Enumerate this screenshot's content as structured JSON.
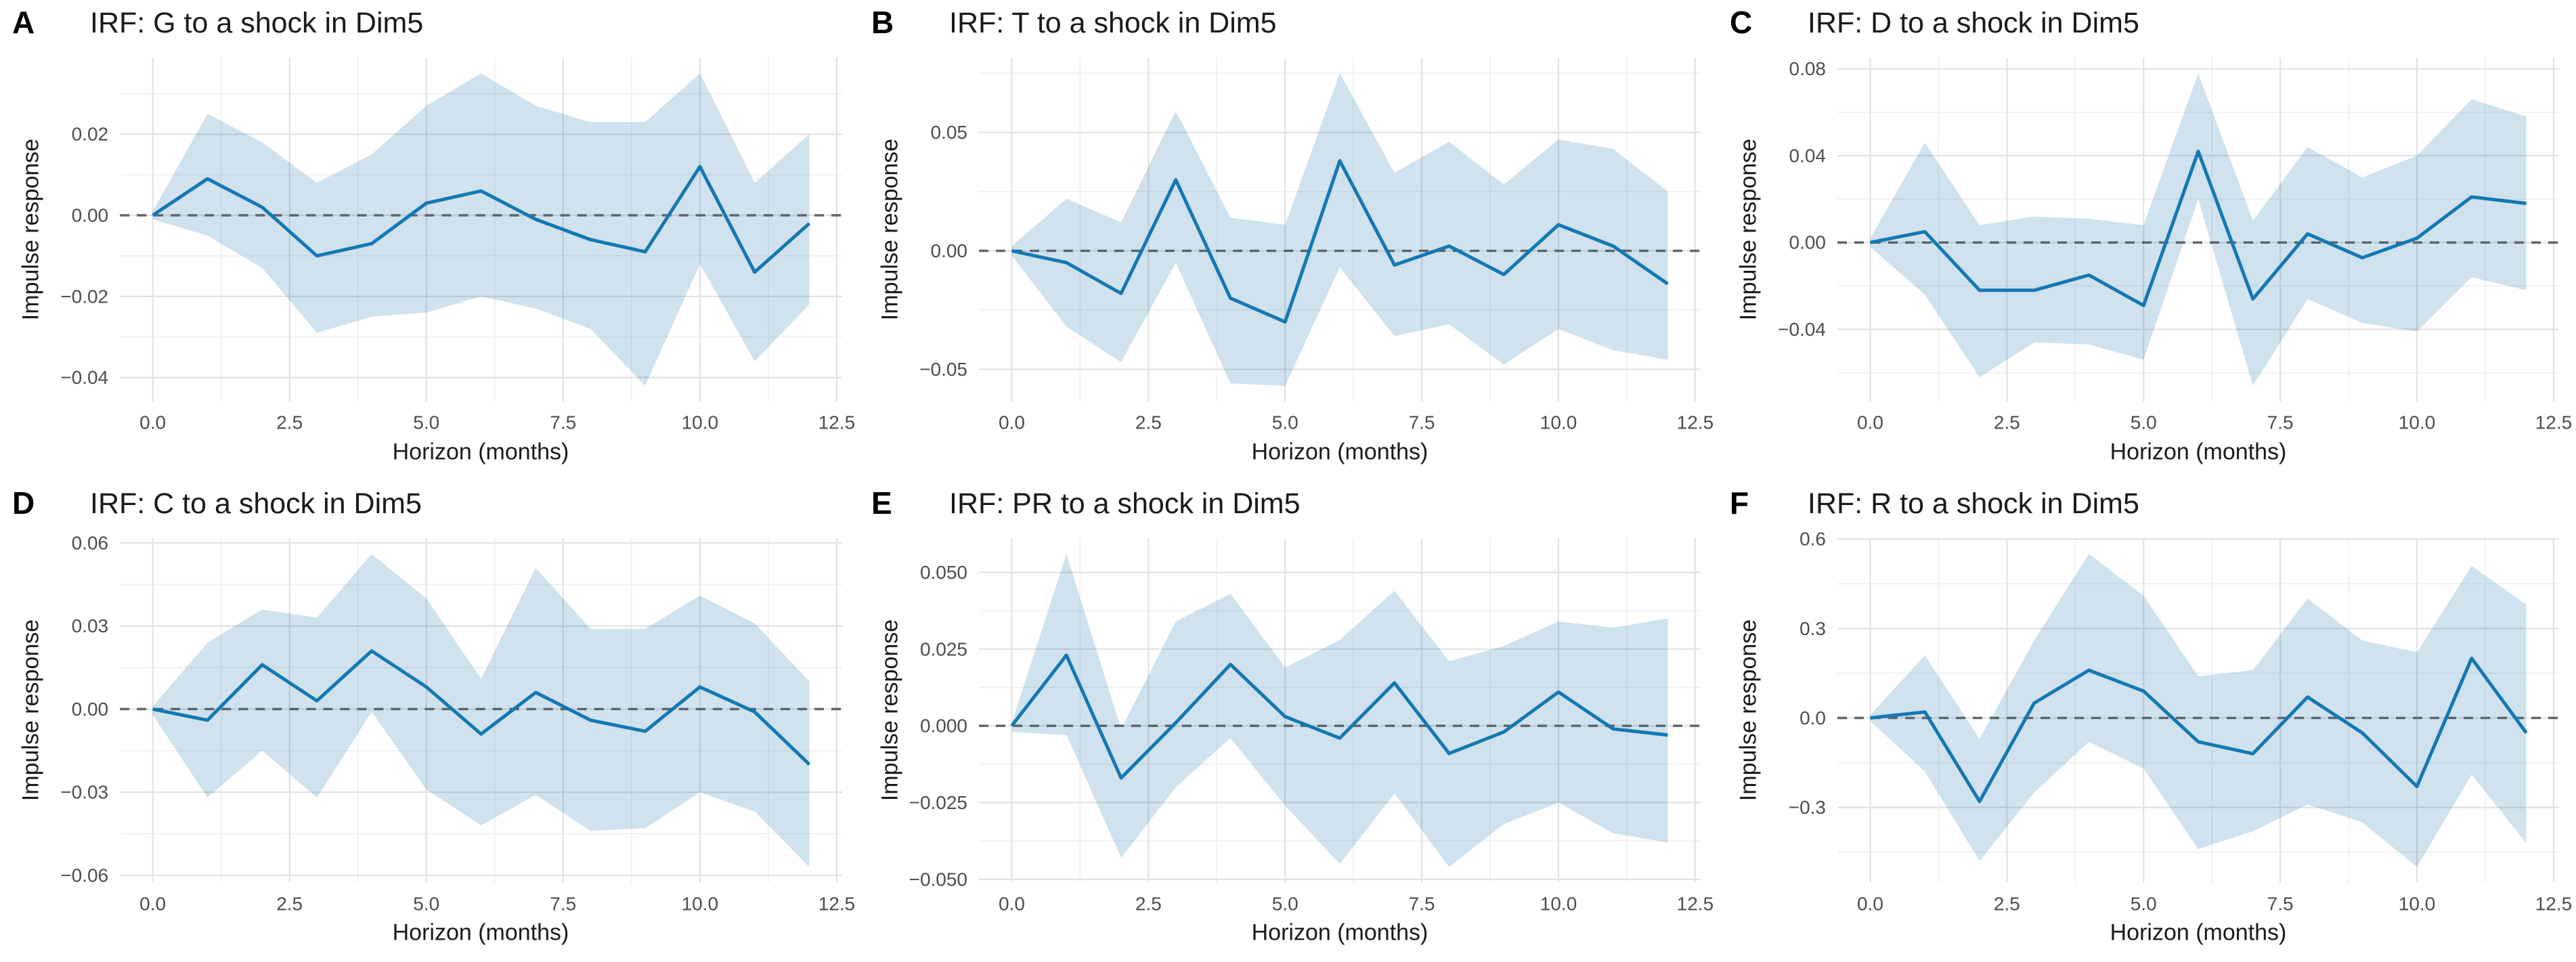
{
  "figure": {
    "background_color": "#ffffff",
    "panels_per_row": 3,
    "n_panels": 6
  },
  "colors": {
    "irf_line": "#1478b2",
    "ci_ribbon_rgba": "rgba(20,110,170,0.20)",
    "zero_dash_line": "#5c666d",
    "grid_major": "#e2e2e2",
    "grid_minor": "#efefef",
    "tick_label": "#4d4d4d",
    "title_text": "#1a1a1a",
    "panel_letter": "#000000"
  },
  "chart_data": [
    {
      "type": "line",
      "panel_label": "A",
      "title": "IRF: G to a shock in Dim5",
      "xlabel": "Horizon (months)",
      "ylabel": "Impulse response",
      "legend": "none",
      "grid": "major+minor",
      "x": [
        0,
        1,
        2,
        3,
        4,
        5,
        6,
        7,
        8,
        9,
        10,
        11,
        12
      ],
      "irf": [
        0.0,
        0.009,
        0.002,
        -0.01,
        -0.007,
        0.003,
        0.006,
        -0.001,
        -0.006,
        -0.009,
        0.012,
        -0.014,
        -0.002
      ],
      "ci_upper": [
        0.001,
        0.025,
        0.018,
        0.008,
        0.015,
        0.027,
        0.035,
        0.027,
        0.023,
        0.023,
        0.035,
        0.008,
        0.02
      ],
      "ci_lower": [
        -0.001,
        -0.005,
        -0.013,
        -0.029,
        -0.025,
        -0.024,
        -0.02,
        -0.023,
        -0.028,
        -0.042,
        -0.012,
        -0.036,
        -0.022
      ],
      "xlim": [
        -0.6,
        12.6
      ],
      "ylim": [
        -0.0459,
        0.0389
      ],
      "x_ticks": [
        0,
        2.5,
        5,
        7.5,
        10,
        12.5
      ],
      "x_tick_labels": [
        "0.0",
        "2.5",
        "5.0",
        "7.5",
        "10.0",
        "12.5"
      ],
      "y_ticks": [
        0.02,
        0.0,
        -0.02,
        -0.04
      ],
      "y_tick_labels": [
        "0.02",
        "0.00",
        "−0.02",
        "−0.04"
      ],
      "zero_line": true
    },
    {
      "type": "line",
      "panel_label": "B",
      "title": "IRF: T to a shock in Dim5",
      "xlabel": "Horizon (months)",
      "ylabel": "Impulse response",
      "legend": "none",
      "grid": "major+minor",
      "x": [
        0,
        1,
        2,
        3,
        4,
        5,
        6,
        7,
        8,
        9,
        10,
        11,
        12
      ],
      "irf": [
        0.0,
        -0.005,
        -0.018,
        0.03,
        -0.02,
        -0.03,
        0.038,
        -0.006,
        0.002,
        -0.01,
        0.011,
        0.002,
        -0.014
      ],
      "ci_upper": [
        0.002,
        0.022,
        0.012,
        0.059,
        0.014,
        0.011,
        0.075,
        0.033,
        0.046,
        0.028,
        0.047,
        0.043,
        0.025
      ],
      "ci_lower": [
        -0.002,
        -0.032,
        -0.047,
        -0.005,
        -0.056,
        -0.057,
        -0.007,
        -0.036,
        -0.031,
        -0.048,
        -0.033,
        -0.042,
        -0.046
      ],
      "xlim": [
        -0.6,
        12.6
      ],
      "ylim": [
        -0.0636,
        0.0816
      ],
      "x_ticks": [
        0,
        2.5,
        5,
        7.5,
        10,
        12.5
      ],
      "x_tick_labels": [
        "0.0",
        "2.5",
        "5.0",
        "7.5",
        "10.0",
        "12.5"
      ],
      "y_ticks": [
        0.05,
        0.0,
        -0.05
      ],
      "y_tick_labels": [
        "0.05",
        "0.00",
        "−0.05"
      ],
      "zero_line": true
    },
    {
      "type": "line",
      "panel_label": "C",
      "title": "IRF: D to a shock in Dim5",
      "xlabel": "Horizon (months)",
      "ylabel": "Impulse response",
      "legend": "none",
      "grid": "major+minor",
      "x": [
        0,
        1,
        2,
        3,
        4,
        5,
        6,
        7,
        8,
        9,
        10,
        11,
        12
      ],
      "irf": [
        0.0,
        0.005,
        -0.022,
        -0.022,
        -0.015,
        -0.029,
        0.042,
        -0.026,
        0.004,
        -0.007,
        0.002,
        0.021,
        0.018
      ],
      "ci_upper": [
        0.002,
        0.046,
        0.008,
        0.012,
        0.011,
        0.008,
        0.078,
        0.01,
        0.044,
        0.03,
        0.04,
        0.066,
        0.058
      ],
      "ci_lower": [
        -0.002,
        -0.024,
        -0.062,
        -0.046,
        -0.047,
        -0.054,
        0.02,
        -0.066,
        -0.026,
        -0.037,
        -0.041,
        -0.016,
        -0.022
      ],
      "xlim": [
        -0.6,
        12.6
      ],
      "ylim": [
        -0.0732,
        0.0852
      ],
      "x_ticks": [
        0,
        2.5,
        5,
        7.5,
        10,
        12.5
      ],
      "x_tick_labels": [
        "0.0",
        "2.5",
        "5.0",
        "7.5",
        "10.0",
        "12.5"
      ],
      "y_ticks": [
        0.08,
        0.04,
        0.0,
        -0.04
      ],
      "y_tick_labels": [
        "0.08",
        "0.04",
        "0.00",
        "−0.04"
      ],
      "zero_line": true
    },
    {
      "type": "line",
      "panel_label": "D",
      "title": "IRF: C to a shock in Dim5",
      "xlabel": "Horizon (months)",
      "ylabel": "Impulse response",
      "legend": "none",
      "grid": "major+minor",
      "x": [
        0,
        1,
        2,
        3,
        4,
        5,
        6,
        7,
        8,
        9,
        10,
        11,
        12
      ],
      "irf": [
        0.0,
        -0.004,
        0.016,
        0.003,
        0.021,
        0.008,
        -0.009,
        0.006,
        -0.004,
        -0.008,
        0.008,
        -0.001,
        -0.02
      ],
      "ci_upper": [
        0.001,
        0.024,
        0.036,
        0.033,
        0.056,
        0.04,
        0.011,
        0.051,
        0.029,
        0.029,
        0.041,
        0.031,
        0.01
      ],
      "ci_lower": [
        -0.002,
        -0.032,
        -0.015,
        -0.032,
        -0.001,
        -0.029,
        -0.042,
        -0.031,
        -0.044,
        -0.043,
        -0.03,
        -0.037,
        -0.057
      ],
      "xlim": [
        -0.6,
        12.6
      ],
      "ylim": [
        -0.0627,
        0.0617
      ],
      "x_ticks": [
        0,
        2.5,
        5,
        7.5,
        10,
        12.5
      ],
      "x_tick_labels": [
        "0.0",
        "2.5",
        "5.0",
        "7.5",
        "10.0",
        "12.5"
      ],
      "y_ticks": [
        0.06,
        0.03,
        0.0,
        -0.03,
        -0.06
      ],
      "y_tick_labels": [
        "0.06",
        "0.03",
        "0.00",
        "−0.03",
        "−0.06"
      ],
      "zero_line": true
    },
    {
      "type": "line",
      "panel_label": "E",
      "title": "IRF: PR to a shock in Dim5",
      "xlabel": "Horizon (months)",
      "ylabel": "Impulse response",
      "legend": "none",
      "grid": "major+minor",
      "x": [
        0,
        1,
        2,
        3,
        4,
        5,
        6,
        7,
        8,
        9,
        10,
        11,
        12
      ],
      "irf": [
        0.0,
        0.023,
        -0.017,
        0.001,
        0.02,
        0.003,
        -0.004,
        0.014,
        -0.009,
        -0.002,
        0.011,
        -0.001,
        -0.003
      ],
      "ci_upper": [
        0.001,
        0.056,
        -0.001,
        0.034,
        0.043,
        0.019,
        0.028,
        0.044,
        0.021,
        0.026,
        0.034,
        0.032,
        0.035
      ],
      "ci_lower": [
        -0.002,
        -0.003,
        -0.043,
        -0.02,
        -0.004,
        -0.026,
        -0.045,
        -0.022,
        -0.046,
        -0.032,
        -0.025,
        -0.035,
        -0.038
      ],
      "xlim": [
        -0.6,
        12.6
      ],
      "ylim": [
        -0.0511,
        0.0611
      ],
      "x_ticks": [
        0,
        2.5,
        5,
        7.5,
        10,
        12.5
      ],
      "x_tick_labels": [
        "0.0",
        "2.5",
        "5.0",
        "7.5",
        "10.0",
        "12.5"
      ],
      "y_ticks": [
        0.05,
        0.025,
        0.0,
        -0.025,
        -0.05
      ],
      "y_tick_labels": [
        "0.050",
        "0.025",
        "0.000",
        "−0.025",
        "−0.050"
      ],
      "zero_line": true
    },
    {
      "type": "line",
      "panel_label": "F",
      "title": "IRF: R to a shock in Dim5",
      "xlabel": "Horizon (months)",
      "ylabel": "Impulse response",
      "legend": "none",
      "grid": "major+minor",
      "x": [
        0,
        1,
        2,
        3,
        4,
        5,
        6,
        7,
        8,
        9,
        10,
        11,
        12
      ],
      "irf": [
        0.0,
        0.02,
        -0.28,
        0.05,
        0.16,
        0.09,
        -0.08,
        -0.12,
        0.07,
        -0.05,
        -0.23,
        0.2,
        -0.05
      ],
      "ci_upper": [
        0.01,
        0.21,
        -0.07,
        0.26,
        0.55,
        0.41,
        0.14,
        0.16,
        0.4,
        0.26,
        0.22,
        0.51,
        0.38
      ],
      "ci_lower": [
        -0.01,
        -0.18,
        -0.48,
        -0.25,
        -0.08,
        -0.17,
        -0.44,
        -0.38,
        -0.29,
        -0.35,
        -0.5,
        -0.19,
        -0.42
      ],
      "xlim": [
        -0.6,
        12.6
      ],
      "ylim": [
        -0.5525,
        0.6025
      ],
      "x_ticks": [
        0,
        2.5,
        5,
        7.5,
        10,
        12.5
      ],
      "x_tick_labels": [
        "0.0",
        "2.5",
        "5.0",
        "7.5",
        "10.0",
        "12.5"
      ],
      "y_ticks": [
        0.6,
        0.3,
        0.0,
        -0.3
      ],
      "y_tick_labels": [
        "0.6",
        "0.3",
        "0.0",
        "−0.3"
      ],
      "zero_line": true
    }
  ]
}
